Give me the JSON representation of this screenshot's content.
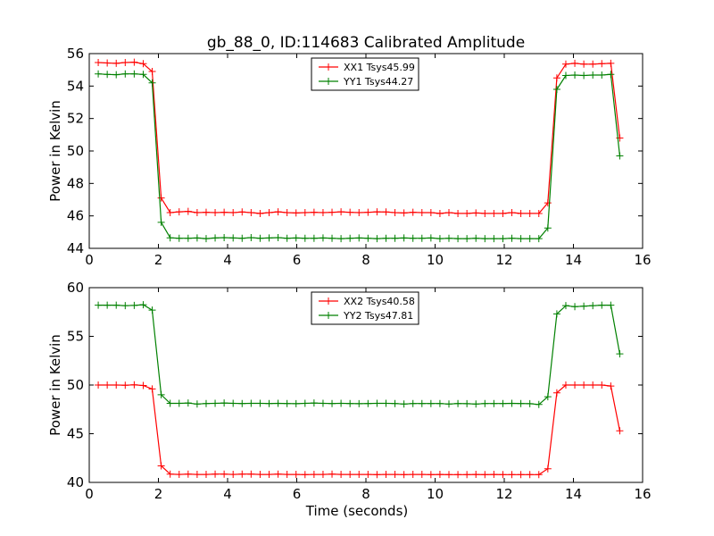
{
  "figure": {
    "title": "gb_88_0, ID:114683 Calibrated Amplitude"
  },
  "chart_data": [
    {
      "type": "line",
      "title": "gb_88_0, ID:114683 Calibrated Amplitude",
      "xlabel": "",
      "ylabel": "Power in Kelvin",
      "xlim": [
        0,
        16
      ],
      "ylim": [
        44,
        56
      ],
      "xticks": [
        0,
        2,
        4,
        6,
        8,
        10,
        12,
        14,
        16
      ],
      "yticks": [
        44,
        46,
        48,
        50,
        52,
        54,
        56
      ],
      "grid": false,
      "legend_position": "top-center",
      "x": [
        0.26,
        0.52,
        0.78,
        1.04,
        1.3,
        1.56,
        1.82,
        2.08,
        2.34,
        2.6,
        2.86,
        3.12,
        3.38,
        3.64,
        3.9,
        4.16,
        4.42,
        4.68,
        4.94,
        5.2,
        5.46,
        5.72,
        5.98,
        6.24,
        6.5,
        6.76,
        7.02,
        7.28,
        7.54,
        7.8,
        8.06,
        8.32,
        8.58,
        8.84,
        9.1,
        9.36,
        9.62,
        9.88,
        10.14,
        10.4,
        10.66,
        10.92,
        11.18,
        11.44,
        11.7,
        11.96,
        12.22,
        12.48,
        12.74,
        13.0,
        13.26,
        13.52,
        13.78,
        14.04,
        14.3,
        14.56,
        14.82,
        15.08,
        15.34
      ],
      "series": [
        {
          "name": "XX1 Tsys45.99",
          "color": "#ff0000",
          "values": [
            55.45,
            55.42,
            55.4,
            55.45,
            55.47,
            55.38,
            54.9,
            47.1,
            46.2,
            46.25,
            46.28,
            46.2,
            46.22,
            46.2,
            46.22,
            46.2,
            46.24,
            46.2,
            46.15,
            46.2,
            46.25,
            46.2,
            46.18,
            46.2,
            46.22,
            46.2,
            46.22,
            46.25,
            46.22,
            46.2,
            46.22,
            46.25,
            46.24,
            46.2,
            46.18,
            46.22,
            46.2,
            46.2,
            46.15,
            46.2,
            46.15,
            46.15,
            46.18,
            46.15,
            46.15,
            46.15,
            46.2,
            46.15,
            46.15,
            46.15,
            46.8,
            54.5,
            55.35,
            55.4,
            55.35,
            55.35,
            55.38,
            55.4,
            50.8
          ]
        },
        {
          "name": "YY1 Tsys44.27",
          "color": "#008000",
          "values": [
            54.75,
            54.72,
            54.7,
            54.75,
            54.75,
            54.72,
            54.2,
            45.6,
            44.65,
            44.62,
            44.62,
            44.64,
            44.6,
            44.64,
            44.66,
            44.64,
            44.62,
            44.66,
            44.62,
            44.64,
            44.66,
            44.62,
            44.64,
            44.62,
            44.62,
            44.64,
            44.62,
            44.6,
            44.62,
            44.64,
            44.62,
            44.6,
            44.62,
            44.62,
            44.64,
            44.62,
            44.62,
            44.64,
            44.6,
            44.62,
            44.6,
            44.6,
            44.62,
            44.6,
            44.6,
            44.6,
            44.62,
            44.6,
            44.6,
            44.6,
            45.25,
            53.8,
            54.65,
            54.68,
            54.65,
            54.68,
            54.68,
            54.72,
            49.7
          ]
        }
      ]
    },
    {
      "type": "line",
      "title": "",
      "xlabel": "Time (seconds)",
      "ylabel": "Power in Kelvin",
      "xlim": [
        0,
        16
      ],
      "ylim": [
        40,
        60
      ],
      "xticks": [
        0,
        2,
        4,
        6,
        8,
        10,
        12,
        14,
        16
      ],
      "yticks": [
        40,
        45,
        50,
        55,
        60
      ],
      "grid": false,
      "legend_position": "top-center",
      "x": [
        0.26,
        0.52,
        0.78,
        1.04,
        1.3,
        1.56,
        1.82,
        2.08,
        2.34,
        2.6,
        2.86,
        3.12,
        3.38,
        3.64,
        3.9,
        4.16,
        4.42,
        4.68,
        4.94,
        5.2,
        5.46,
        5.72,
        5.98,
        6.24,
        6.5,
        6.76,
        7.02,
        7.28,
        7.54,
        7.8,
        8.06,
        8.32,
        8.58,
        8.84,
        9.1,
        9.36,
        9.62,
        9.88,
        10.14,
        10.4,
        10.66,
        10.92,
        11.18,
        11.44,
        11.7,
        11.96,
        12.22,
        12.48,
        12.74,
        13.0,
        13.26,
        13.52,
        13.78,
        14.04,
        14.3,
        14.56,
        14.82,
        15.08,
        15.34
      ],
      "series": [
        {
          "name": "XX2 Tsys40.58",
          "color": "#ff0000",
          "values": [
            50.0,
            50.0,
            50.0,
            49.98,
            50.02,
            49.95,
            49.6,
            41.7,
            40.85,
            40.82,
            40.85,
            40.82,
            40.82,
            40.85,
            40.85,
            40.82,
            40.85,
            40.85,
            40.82,
            40.82,
            40.85,
            40.82,
            40.82,
            40.8,
            40.82,
            40.82,
            40.85,
            40.82,
            40.82,
            40.82,
            40.82,
            40.8,
            40.82,
            40.82,
            40.8,
            40.82,
            40.82,
            40.8,
            40.82,
            40.8,
            40.8,
            40.8,
            40.82,
            40.8,
            40.82,
            40.8,
            40.8,
            40.8,
            40.8,
            40.8,
            41.4,
            49.2,
            50.0,
            50.0,
            50.0,
            50.0,
            50.0,
            49.9,
            45.3
          ]
        },
        {
          "name": "YY2 Tsys47.81",
          "color": "#008000",
          "values": [
            58.2,
            58.2,
            58.2,
            58.15,
            58.18,
            58.25,
            57.7,
            49.0,
            48.12,
            48.12,
            48.15,
            48.05,
            48.1,
            48.12,
            48.15,
            48.12,
            48.1,
            48.12,
            48.12,
            48.1,
            48.12,
            48.1,
            48.08,
            48.12,
            48.15,
            48.12,
            48.1,
            48.12,
            48.1,
            48.08,
            48.1,
            48.12,
            48.12,
            48.1,
            48.05,
            48.1,
            48.1,
            48.1,
            48.1,
            48.05,
            48.1,
            48.08,
            48.05,
            48.1,
            48.1,
            48.1,
            48.12,
            48.1,
            48.08,
            48.0,
            48.8,
            57.3,
            58.15,
            58.05,
            58.1,
            58.15,
            58.2,
            58.2,
            53.2
          ]
        }
      ]
    }
  ]
}
